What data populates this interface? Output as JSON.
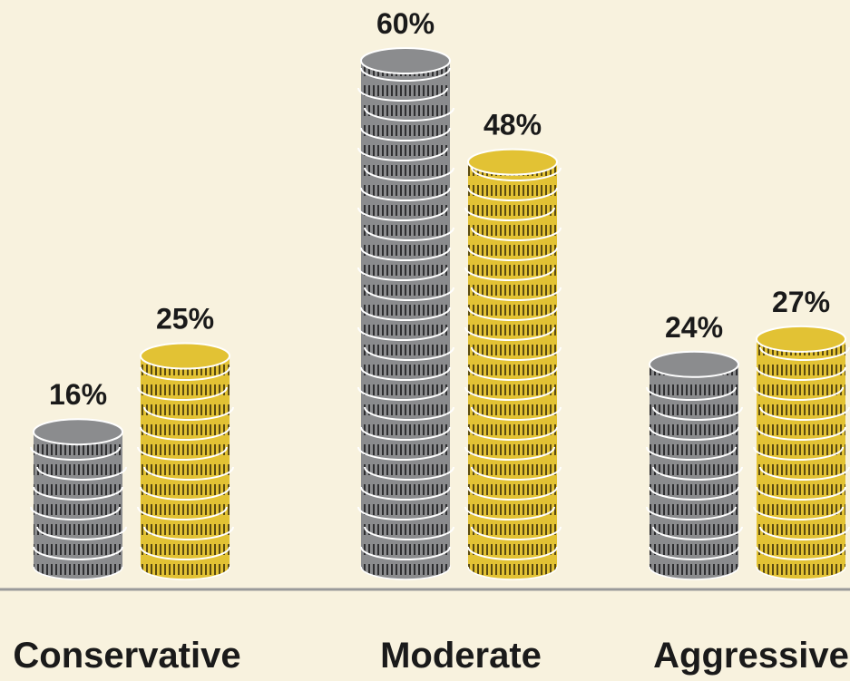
{
  "chart_data": {
    "type": "bar",
    "categories": [
      "Conservative",
      "Moderate",
      "Aggressive"
    ],
    "series": [
      {
        "color": "#8b8c8e",
        "values": [
          16,
          60,
          24
        ],
        "value_labels": [
          "16%",
          "60%",
          "24%"
        ]
      },
      {
        "color": "#e2c234",
        "values": [
          25,
          48,
          27
        ],
        "value_labels": [
          "25%",
          "48%",
          "27%"
        ]
      }
    ]
  }
}
